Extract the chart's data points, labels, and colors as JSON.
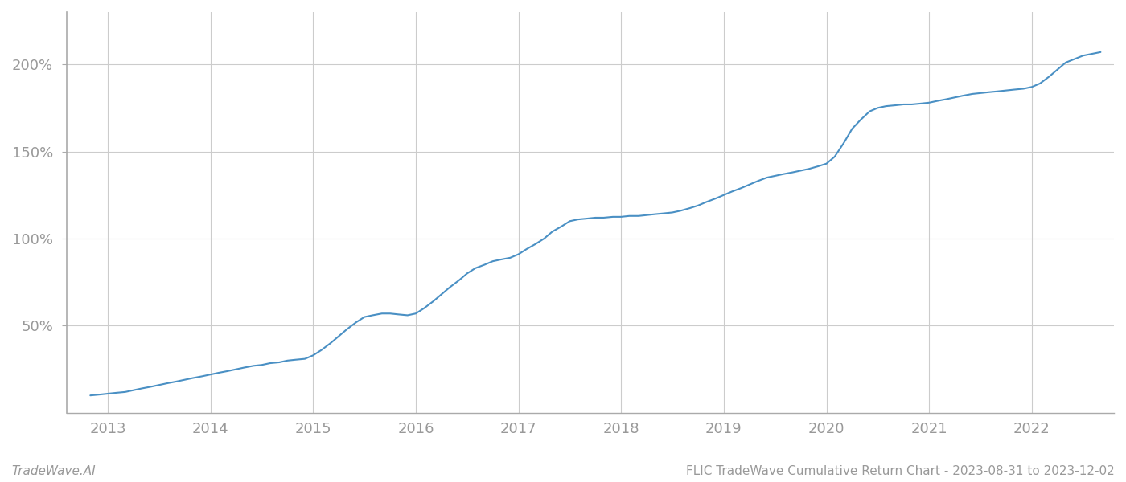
{
  "title": "",
  "footer_left": "TradeWave.AI",
  "footer_right": "FLIC TradeWave Cumulative Return Chart - 2023-08-31 to 2023-12-02",
  "line_color": "#4a90c4",
  "line_width": 1.5,
  "background_color": "#ffffff",
  "grid_color": "#cccccc",
  "x_data": [
    2012.83,
    2012.92,
    2013.0,
    2013.08,
    2013.17,
    2013.25,
    2013.33,
    2013.42,
    2013.5,
    2013.58,
    2013.67,
    2013.75,
    2013.83,
    2013.92,
    2014.0,
    2014.08,
    2014.17,
    2014.25,
    2014.33,
    2014.42,
    2014.5,
    2014.58,
    2014.67,
    2014.75,
    2014.83,
    2014.92,
    2015.0,
    2015.08,
    2015.17,
    2015.25,
    2015.33,
    2015.42,
    2015.5,
    2015.58,
    2015.67,
    2015.75,
    2015.83,
    2015.92,
    2016.0,
    2016.08,
    2016.17,
    2016.25,
    2016.33,
    2016.42,
    2016.5,
    2016.58,
    2016.67,
    2016.75,
    2016.83,
    2016.92,
    2017.0,
    2017.08,
    2017.17,
    2017.25,
    2017.33,
    2017.42,
    2017.5,
    2017.58,
    2017.67,
    2017.75,
    2017.83,
    2017.92,
    2018.0,
    2018.08,
    2018.17,
    2018.25,
    2018.33,
    2018.42,
    2018.5,
    2018.58,
    2018.67,
    2018.75,
    2018.83,
    2018.92,
    2019.0,
    2019.08,
    2019.17,
    2019.25,
    2019.33,
    2019.42,
    2019.5,
    2019.58,
    2019.67,
    2019.75,
    2019.83,
    2019.92,
    2020.0,
    2020.08,
    2020.17,
    2020.25,
    2020.33,
    2020.42,
    2020.5,
    2020.58,
    2020.67,
    2020.75,
    2020.83,
    2020.92,
    2021.0,
    2021.08,
    2021.17,
    2021.25,
    2021.33,
    2021.42,
    2021.5,
    2021.58,
    2021.67,
    2021.75,
    2021.83,
    2021.92,
    2022.0,
    2022.08,
    2022.17,
    2022.25,
    2022.33,
    2022.5,
    2022.67
  ],
  "y_data": [
    10.0,
    10.5,
    11.0,
    11.5,
    12.0,
    13.0,
    14.0,
    15.0,
    16.0,
    17.0,
    18.0,
    19.0,
    20.0,
    21.0,
    22.0,
    23.0,
    24.0,
    25.0,
    26.0,
    27.0,
    27.5,
    28.5,
    29.0,
    30.0,
    30.5,
    31.0,
    33.0,
    36.0,
    40.0,
    44.0,
    48.0,
    52.0,
    55.0,
    56.0,
    57.0,
    57.0,
    56.5,
    56.0,
    57.0,
    60.0,
    64.0,
    68.0,
    72.0,
    76.0,
    80.0,
    83.0,
    85.0,
    87.0,
    88.0,
    89.0,
    91.0,
    94.0,
    97.0,
    100.0,
    104.0,
    107.0,
    110.0,
    111.0,
    111.5,
    112.0,
    112.0,
    112.5,
    112.5,
    113.0,
    113.0,
    113.5,
    114.0,
    114.5,
    115.0,
    116.0,
    117.5,
    119.0,
    121.0,
    123.0,
    125.0,
    127.0,
    129.0,
    131.0,
    133.0,
    135.0,
    136.0,
    137.0,
    138.0,
    139.0,
    140.0,
    141.5,
    143.0,
    147.0,
    155.0,
    163.0,
    168.0,
    173.0,
    175.0,
    176.0,
    176.5,
    177.0,
    177.0,
    177.5,
    178.0,
    179.0,
    180.0,
    181.0,
    182.0,
    183.0,
    183.5,
    184.0,
    184.5,
    185.0,
    185.5,
    186.0,
    187.0,
    189.0,
    193.0,
    197.0,
    201.0,
    205.0,
    207.0
  ],
  "ylim": [
    0,
    230
  ],
  "xlim": [
    2012.6,
    2022.8
  ],
  "yticks": [
    50,
    100,
    150,
    200
  ],
  "ytick_labels": [
    "50%",
    "100%",
    "150%",
    "200%"
  ],
  "xticks": [
    2013,
    2014,
    2015,
    2016,
    2017,
    2018,
    2019,
    2020,
    2021,
    2022
  ],
  "xtick_labels": [
    "2013",
    "2014",
    "2015",
    "2016",
    "2017",
    "2018",
    "2019",
    "2020",
    "2021",
    "2022"
  ],
  "tick_color": "#999999",
  "tick_fontsize": 13,
  "footer_fontsize": 11,
  "spine_color": "#aaaaaa"
}
